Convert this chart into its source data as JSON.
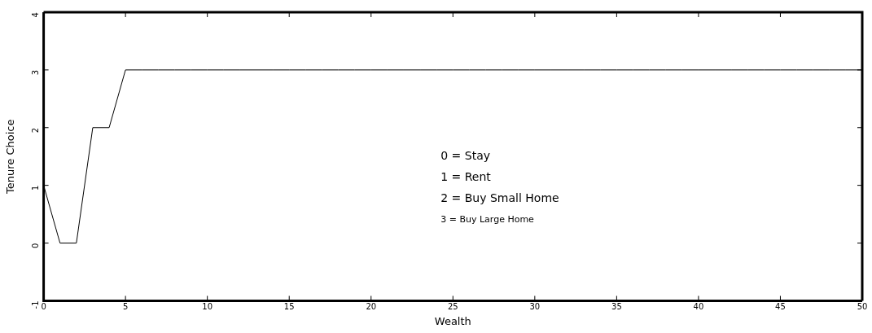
{
  "chart_data": {
    "type": "line",
    "xlabel": "Wealth",
    "ylabel": "Tenure Choice",
    "x": [
      0,
      1,
      2,
      3,
      4,
      5,
      6,
      7,
      8,
      9,
      10,
      11,
      12,
      13,
      14,
      15,
      16,
      17,
      18,
      19,
      20,
      21,
      22,
      23,
      24,
      25,
      26,
      27,
      28,
      29,
      30,
      31,
      32,
      33,
      34,
      35,
      36,
      37,
      38,
      39,
      40,
      41,
      42,
      43,
      44,
      45,
      46,
      47,
      48,
      49,
      50
    ],
    "series": [
      {
        "color": "#000000",
        "values": [
          1,
          0,
          0,
          2,
          2,
          3,
          3,
          3,
          3,
          3,
          3,
          3,
          3,
          3,
          3,
          3,
          3,
          3,
          3,
          3,
          3,
          3,
          3,
          3,
          3,
          3,
          3,
          3,
          3,
          3,
          3,
          3,
          3,
          3,
          3,
          3,
          3,
          3,
          3,
          3,
          3,
          3,
          3,
          3,
          3,
          3,
          3,
          3,
          3,
          3,
          3
        ]
      }
    ],
    "xlim": [
      0,
      50
    ],
    "xticks": [
      0,
      5,
      10,
      15,
      20,
      25,
      30,
      35,
      40,
      45,
      50
    ],
    "ylim": [
      -1,
      4
    ],
    "yticks": [
      -1,
      0,
      1,
      2,
      3,
      4
    ],
    "annotations": [
      "0 = Stay",
      "1 = Rent",
      "2 = Buy Small Home",
      "3 = Buy Large Home"
    ],
    "grid": false,
    "legend": false,
    "marker": "none",
    "line_style": "solid"
  }
}
